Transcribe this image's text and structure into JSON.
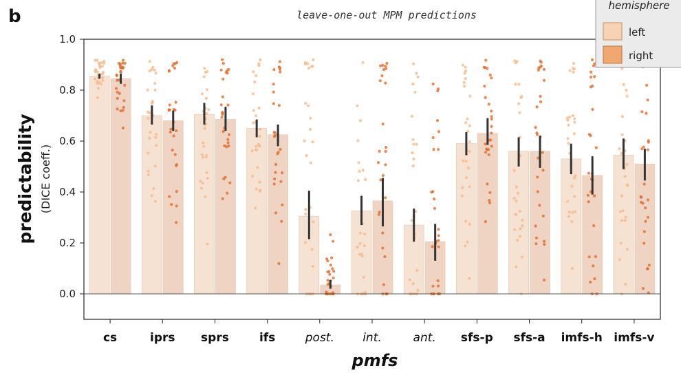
{
  "panel_letter": "b",
  "chart_data": {
    "type": "bar",
    "title": "leave-one-out MPM predictions",
    "ylabel": "predictability",
    "ylabel_sub": "(DICE coeff.)",
    "xlabel": "pmfs",
    "ylim": [
      -0.1,
      1.0
    ],
    "yticks": [
      "0.0",
      "0.2",
      "0.4",
      "0.6",
      "0.8",
      "1.0"
    ],
    "grid": false,
    "legend_position": "top-right",
    "legend_title": "hemisphere",
    "categories": [
      "cs",
      "iprs",
      "sprs",
      "ifs",
      "post.",
      "int.",
      "ant.",
      "sfs-p",
      "sfs-a",
      "imfs-h",
      "imfs-v"
    ],
    "italic_categories": [
      "post.",
      "int.",
      "ant."
    ],
    "series": [
      {
        "name": "left",
        "bar_color": "#f6e2d2",
        "point_color": "#f5b98a",
        "legend_color": "#f8d3b3",
        "values": [
          0.855,
          0.7,
          0.705,
          0.65,
          0.305,
          0.325,
          0.27,
          0.59,
          0.56,
          0.53,
          0.545
        ],
        "ci_low": [
          0.845,
          0.665,
          0.665,
          0.615,
          0.215,
          0.27,
          0.205,
          0.545,
          0.5,
          0.47,
          0.49
        ],
        "ci_high": [
          0.865,
          0.74,
          0.75,
          0.685,
          0.405,
          0.385,
          0.335,
          0.635,
          0.615,
          0.59,
          0.61
        ]
      },
      {
        "name": "right",
        "bar_color": "#efd3c3",
        "point_color": "#e26c2a",
        "legend_color": "#f0a870",
        "values": [
          0.845,
          0.68,
          0.685,
          0.625,
          0.035,
          0.365,
          0.205,
          0.63,
          0.56,
          0.465,
          0.51
        ],
        "ci_low": [
          0.825,
          0.64,
          0.64,
          0.58,
          0.02,
          0.265,
          0.13,
          0.585,
          0.495,
          0.39,
          0.445
        ],
        "ci_high": [
          0.865,
          0.72,
          0.735,
          0.665,
          0.055,
          0.455,
          0.275,
          0.69,
          0.62,
          0.54,
          0.57
        ]
      }
    ]
  }
}
